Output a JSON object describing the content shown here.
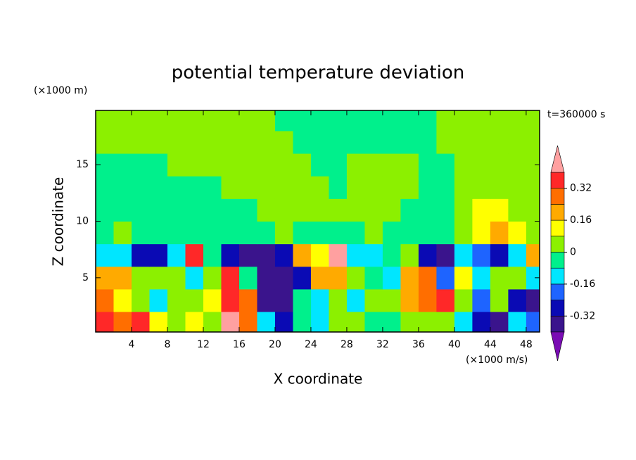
{
  "chart_data": {
    "type": "contour",
    "title": "potential temperature deviation",
    "y_unit": "(×1000 m)",
    "x_unit": "(×1000 m/s)",
    "time_label": "t=360000 s",
    "xlabel": "X coordinate",
    "ylabel": "Z coordinate",
    "xlim": [
      0,
      49.5
    ],
    "ylim": [
      0.2,
      19.8
    ],
    "xticks": [
      4,
      8,
      12,
      16,
      20,
      24,
      28,
      32,
      36,
      40,
      44,
      48
    ],
    "yticks": [
      5,
      10,
      15
    ],
    "x": [
      1,
      3,
      5,
      7,
      9,
      11,
      13,
      15,
      17,
      19,
      21,
      23,
      25,
      27,
      29,
      31,
      33,
      35,
      37,
      39,
      41,
      43,
      45,
      47,
      49
    ],
    "y": [
      1,
      3,
      5,
      7,
      9,
      11,
      13,
      15,
      17,
      19
    ],
    "z": [
      [
        0.36,
        0.28,
        0.36,
        0.12,
        0.04,
        0.12,
        0.04,
        0.45,
        0.28,
        -0.12,
        -0.28,
        -0.04,
        -0.12,
        0.04,
        0.04,
        -0.04,
        -0.04,
        0.04,
        0.04,
        0.04,
        -0.12,
        -0.28,
        -0.36,
        -0.12,
        -0.2
      ],
      [
        0.28,
        0.12,
        0.04,
        -0.12,
        0.04,
        0.04,
        0.12,
        0.36,
        0.28,
        -0.36,
        -0.36,
        -0.04,
        -0.12,
        0.04,
        -0.12,
        0.04,
        0.04,
        0.2,
        0.28,
        0.36,
        0.04,
        -0.2,
        0.04,
        -0.28,
        -0.36
      ],
      [
        0.2,
        0.2,
        0.04,
        0.04,
        0.04,
        -0.12,
        0.04,
        0.36,
        -0.04,
        -0.36,
        -0.36,
        -0.28,
        0.2,
        0.2,
        0.04,
        -0.04,
        -0.12,
        0.2,
        0.28,
        -0.2,
        0.12,
        -0.12,
        0.04,
        0.04,
        -0.12
      ],
      [
        -0.12,
        -0.12,
        -0.28,
        -0.28,
        -0.12,
        0.36,
        -0.04,
        -0.28,
        -0.36,
        -0.36,
        -0.28,
        0.2,
        0.12,
        0.45,
        -0.12,
        -0.12,
        -0.04,
        0.04,
        -0.28,
        -0.36,
        -0.12,
        -0.2,
        -0.28,
        -0.12,
        0.2
      ],
      [
        -0.04,
        0.04,
        -0.04,
        -0.04,
        -0.04,
        -0.04,
        -0.04,
        -0.04,
        -0.04,
        -0.04,
        0.04,
        -0.04,
        -0.04,
        -0.04,
        -0.04,
        0.04,
        -0.04,
        -0.04,
        -0.04,
        -0.04,
        0.04,
        0.12,
        0.2,
        0.12,
        0.04
      ],
      [
        -0.04,
        -0.04,
        -0.04,
        -0.04,
        -0.04,
        -0.04,
        -0.04,
        -0.04,
        -0.04,
        0.04,
        0.04,
        0.04,
        0.04,
        0.04,
        0.04,
        0.04,
        0.04,
        -0.04,
        -0.04,
        -0.04,
        0.04,
        0.12,
        0.12,
        0.04,
        0.04
      ],
      [
        -0.04,
        -0.04,
        -0.04,
        -0.04,
        -0.04,
        -0.04,
        -0.04,
        0.04,
        0.04,
        0.04,
        0.04,
        0.04,
        0.04,
        -0.04,
        0.04,
        0.04,
        0.04,
        0.04,
        -0.04,
        -0.04,
        0.04,
        0.04,
        0.04,
        0.04,
        0.04
      ],
      [
        -0.04,
        -0.04,
        -0.04,
        -0.04,
        0.04,
        0.04,
        0.04,
        0.04,
        0.04,
        0.04,
        0.04,
        0.04,
        -0.04,
        -0.04,
        0.04,
        0.04,
        0.04,
        0.04,
        -0.04,
        -0.04,
        0.04,
        0.04,
        0.04,
        0.04,
        0.04
      ],
      [
        0.04,
        0.04,
        0.04,
        0.04,
        0.04,
        0.04,
        0.04,
        0.04,
        0.04,
        0.04,
        0.04,
        -0.04,
        -0.04,
        -0.04,
        -0.04,
        -0.04,
        -0.04,
        -0.04,
        -0.04,
        0.04,
        0.04,
        0.04,
        0.04,
        0.04,
        0.04
      ],
      [
        0.04,
        0.04,
        0.04,
        0.04,
        0.04,
        0.04,
        0.04,
        0.04,
        0.04,
        0.04,
        -0.04,
        -0.04,
        -0.04,
        -0.04,
        -0.04,
        -0.04,
        -0.04,
        -0.04,
        -0.04,
        0.04,
        0.04,
        0.04,
        0.04,
        0.04,
        0.04
      ]
    ],
    "levels": [
      -0.4,
      -0.32,
      -0.24,
      -0.16,
      -0.08,
      0,
      0.08,
      0.16,
      0.24,
      0.32,
      0.4
    ],
    "colors": [
      "#7a0cb4",
      "#3a148c",
      "#0a0ab4",
      "#1e64ff",
      "#00e6ff",
      "#00f08c",
      "#8cf000",
      "#ffff00",
      "#ffaa00",
      "#ff6e00",
      "#ff2828",
      "#ffa0a0"
    ],
    "colorbar_ticks": [
      0.32,
      0.16,
      0,
      -0.16,
      -0.32
    ]
  }
}
